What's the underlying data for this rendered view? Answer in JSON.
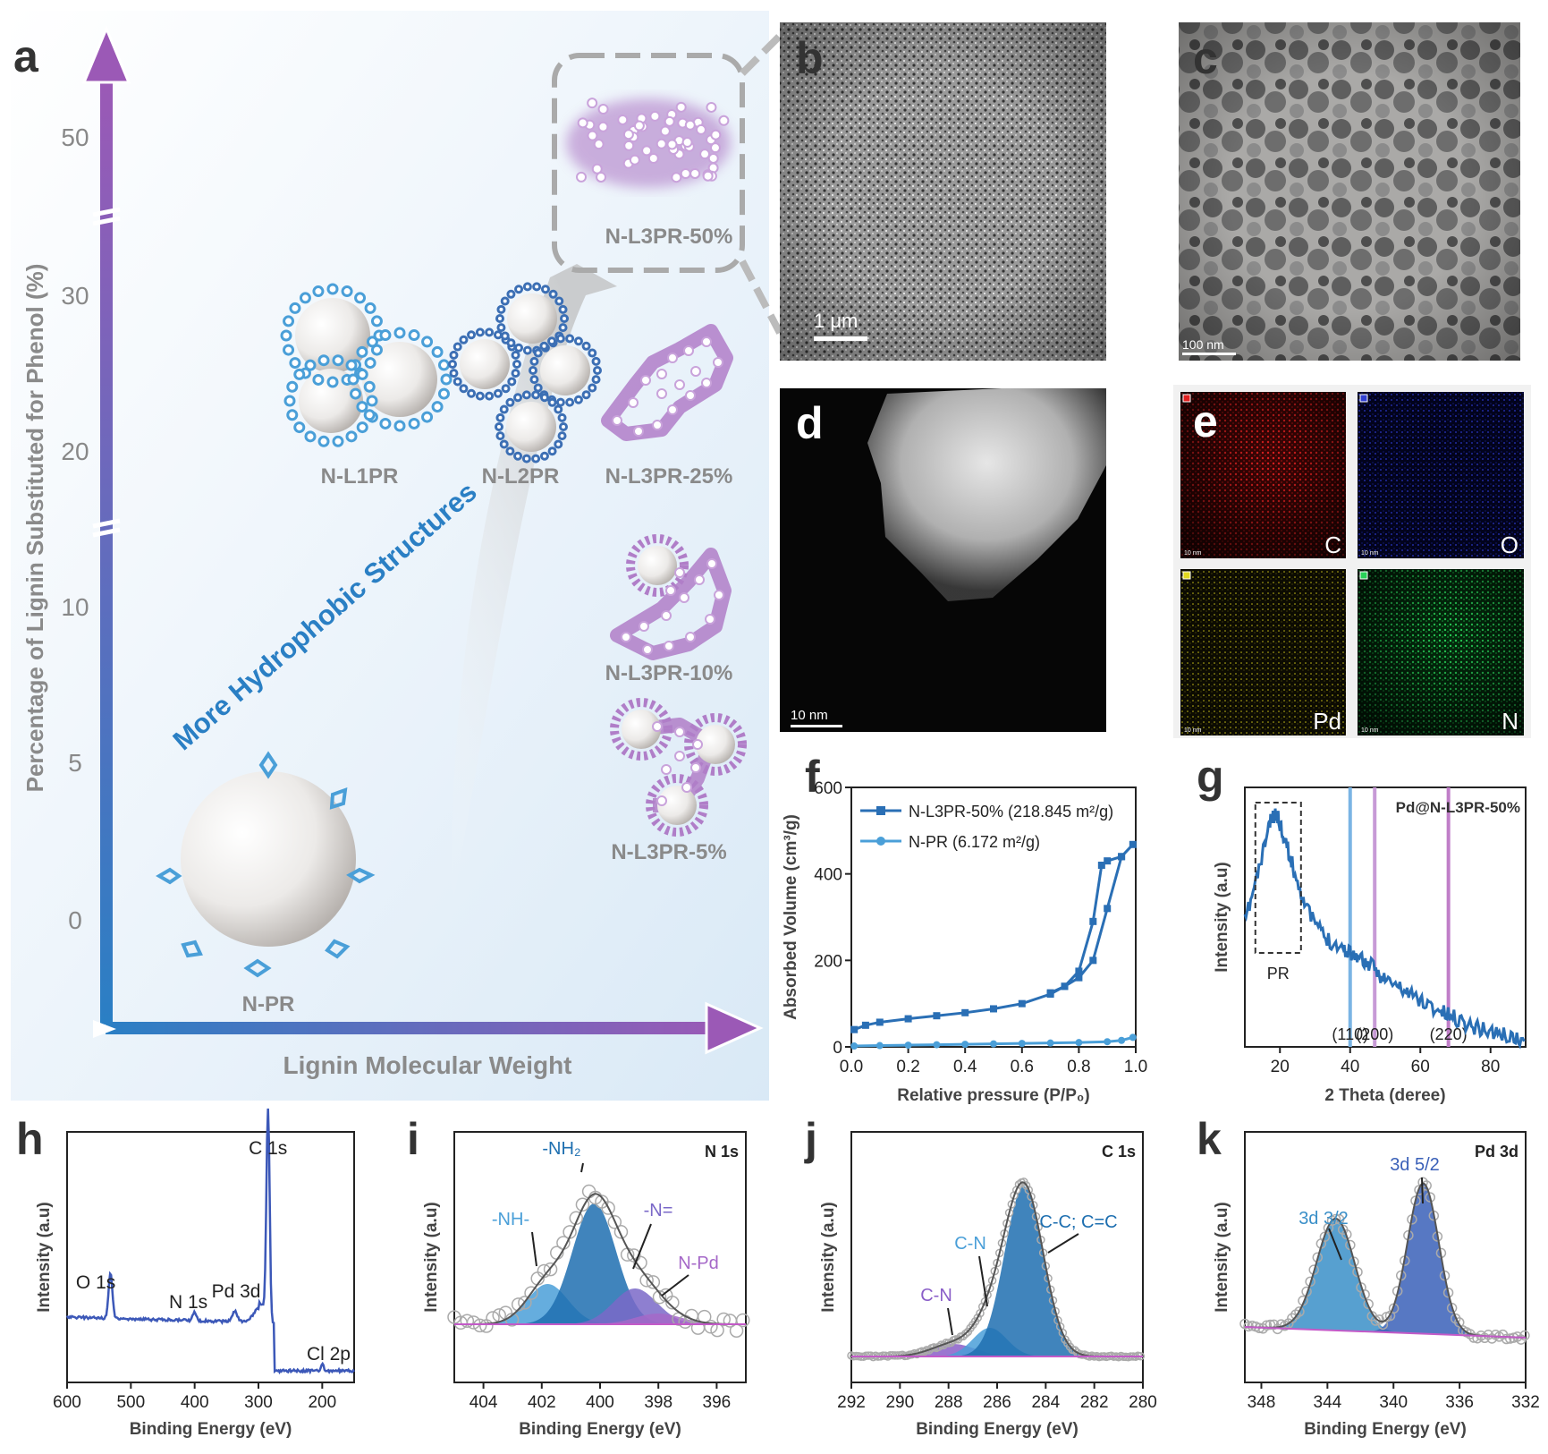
{
  "panel_labels": {
    "a": "a",
    "b": "b",
    "c": "c",
    "d": "d",
    "e": "e",
    "f": "f",
    "g": "g",
    "h": "h",
    "i": "i",
    "j": "j",
    "k": "k"
  },
  "panel_a": {
    "y_axis_title": "Percentage of Lignin Substituted for Phenol (%)",
    "x_axis_title": "Lignin Molecular Weight",
    "y_ticks": [
      "0",
      "5",
      "10",
      "20",
      "30",
      "50"
    ],
    "arrow_label": "More Hydrophobic Structures",
    "samples": {
      "n_pr": "N-PR",
      "n_l1pr": "N-L1PR",
      "n_l2pr": "N-L2PR",
      "n_l3pr_5": "N-L3PR-5%",
      "n_l3pr_10": "N-L3PR-10%",
      "n_l3pr_25": "N-L3PR-25%",
      "n_l3pr_50": "N-L3PR-50%"
    },
    "colors": {
      "blue": "#2a6fb5",
      "purple": "#9b59b6"
    }
  },
  "panel_b": {
    "scale_bar": "1 μm"
  },
  "panel_c": {
    "scale_bar": "100 nm"
  },
  "panel_d": {
    "scale_bar": "10 nm"
  },
  "panel_e": {
    "maps": [
      {
        "element": "C",
        "color": "#d01818",
        "scale": "10 nm"
      },
      {
        "element": "O",
        "color": "#2330b8",
        "scale": "10 nm"
      },
      {
        "element": "Pd",
        "color": "#d0c81a",
        "scale": "10 nm"
      },
      {
        "element": "N",
        "color": "#18b848",
        "scale": "10 nm"
      }
    ]
  },
  "chart_data": [
    {
      "panel": "f",
      "type": "line",
      "xlabel": "Relative pressure (P/P₀)",
      "ylabel": "Absorbed Volume (cm³/g)",
      "xlim": [
        0,
        1.0
      ],
      "ylim": [
        0,
        600
      ],
      "x_ticks": [
        "0.0",
        "0.2",
        "0.4",
        "0.6",
        "0.8",
        "1.0"
      ],
      "y_ticks": [
        "0",
        "200",
        "400",
        "600"
      ],
      "legend_position": "top-left",
      "series": [
        {
          "name": "N-L3PR-50% (218.845 m²/g)",
          "color": "#2a6fb5",
          "marker": "square",
          "x": [
            0.01,
            0.05,
            0.1,
            0.2,
            0.3,
            0.4,
            0.5,
            0.6,
            0.7,
            0.75,
            0.8,
            0.85,
            0.88,
            0.9,
            0.95,
            0.99,
            0.95,
            0.9,
            0.85,
            0.8,
            0.75,
            0.7
          ],
          "y": [
            40,
            50,
            57,
            65,
            72,
            79,
            88,
            100,
            122,
            140,
            175,
            290,
            420,
            430,
            440,
            468,
            440,
            320,
            200,
            160,
            140,
            125
          ]
        },
        {
          "name": "N-PR (6.172 m²/g)",
          "color": "#4a9fd8",
          "marker": "circle",
          "x": [
            0.01,
            0.1,
            0.2,
            0.3,
            0.4,
            0.5,
            0.6,
            0.7,
            0.8,
            0.9,
            0.95,
            0.99
          ],
          "y": [
            2,
            3,
            4,
            5,
            6,
            7,
            8,
            9,
            10,
            12,
            15,
            22
          ]
        }
      ]
    },
    {
      "panel": "g",
      "type": "line",
      "xlabel": "2 Theta (deree)",
      "ylabel": "Intensity (a.u)",
      "xlim": [
        10,
        90
      ],
      "x_ticks": [
        "20",
        "40",
        "60",
        "80"
      ],
      "series_label": "Pd@N-L3PR-50%",
      "box_label": "PR",
      "reflections": [
        {
          "label": "(110)",
          "x": 40,
          "color": "#7ab4e4"
        },
        {
          "label": "(200)",
          "x": 47,
          "color": "#c79ad6"
        },
        {
          "label": "(220)",
          "x": 68,
          "color": "#c07ec8"
        }
      ],
      "series": [
        {
          "color": "#2a6fb5",
          "x": [
            10,
            14,
            17,
            19,
            21,
            24,
            28,
            33,
            38,
            42,
            46,
            50,
            55,
            60,
            65,
            70,
            75,
            80,
            85,
            90
          ],
          "y": [
            0.48,
            0.68,
            0.86,
            0.9,
            0.82,
            0.68,
            0.52,
            0.42,
            0.38,
            0.35,
            0.31,
            0.26,
            0.22,
            0.18,
            0.14,
            0.11,
            0.08,
            0.06,
            0.04,
            0.02
          ]
        }
      ]
    },
    {
      "panel": "h",
      "type": "line",
      "xlabel": "Binding Energy (eV)",
      "ylabel": "Intensity (a.u)",
      "xlim": [
        600,
        150
      ],
      "x_ticks": [
        "600",
        "500",
        "400",
        "300",
        "200"
      ],
      "peak_labels": [
        {
          "label": "O 1s",
          "x": 532
        },
        {
          "label": "N 1s",
          "x": 400
        },
        {
          "label": "Pd 3d",
          "x": 337
        },
        {
          "label": "C 1s",
          "x": 285
        },
        {
          "label": "Cl 2p",
          "x": 200
        }
      ]
    },
    {
      "panel": "i",
      "type": "area",
      "title": "N 1s",
      "xlabel": "Binding Energy (eV)",
      "ylabel": "Intensity (a.u)",
      "xlim": [
        405,
        395
      ],
      "x_ticks": [
        "404",
        "402",
        "400",
        "398",
        "396"
      ],
      "components": [
        {
          "label": "-NH-",
          "center": 401.8,
          "color": "#4a9fd8"
        },
        {
          "label": "-NH₂",
          "center": 400.2,
          "color": "#1e6fb0"
        },
        {
          "label": "-N=",
          "center": 398.8,
          "color": "#7a68c8"
        },
        {
          "label": "N-Pd",
          "center": 398.0,
          "color": "#a568c8"
        }
      ]
    },
    {
      "panel": "j",
      "type": "area",
      "title": "C 1s",
      "xlabel": "Binding Energy (eV)",
      "ylabel": "Intensity (a.u)",
      "xlim": [
        292,
        280
      ],
      "x_ticks": [
        "292",
        "290",
        "288",
        "286",
        "284",
        "282",
        "280"
      ],
      "components": [
        {
          "label": "C-N",
          "center": 287.8,
          "color": "#8a5ec8"
        },
        {
          "label": "C-N",
          "center": 286.3,
          "color": "#4a9fd8"
        },
        {
          "label": "C-C; C=C",
          "center": 284.9,
          "color": "#1e6fb0"
        }
      ]
    },
    {
      "panel": "k",
      "type": "area",
      "title": "Pd 3d",
      "xlabel": "Binding Energy (eV)",
      "ylabel": "Intensity (a.u)",
      "xlim": [
        349,
        332
      ],
      "x_ticks": [
        "348",
        "344",
        "340",
        "336",
        "332"
      ],
      "components": [
        {
          "label": "3d 3/2",
          "center": 343.5,
          "color": "#3a8fc8"
        },
        {
          "label": "3d 5/2",
          "center": 338.2,
          "color": "#3a60b8"
        }
      ]
    }
  ]
}
